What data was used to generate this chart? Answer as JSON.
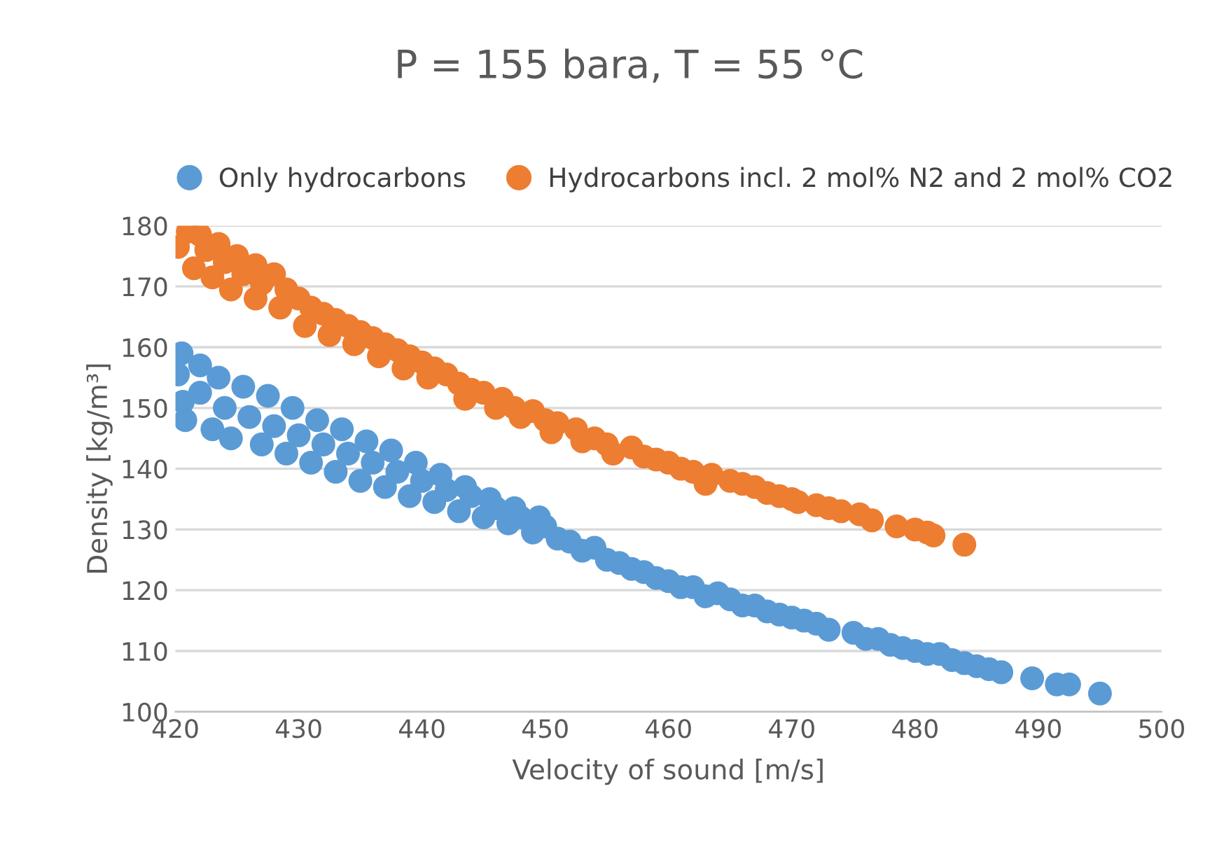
{
  "chart_data": {
    "type": "scatter",
    "title": "P = 155 bara, T = 55 °C",
    "xlabel": "Velocity of sound [m/s]",
    "ylabel": "Density [kg/m³]",
    "xlim": [
      420,
      500
    ],
    "xticks": [
      420,
      430,
      440,
      450,
      460,
      470,
      480,
      490,
      500
    ],
    "ylim": [
      100,
      180
    ],
    "yticks": [
      100,
      110,
      120,
      130,
      140,
      150,
      160,
      170,
      180
    ],
    "grid": "y",
    "legend": "top",
    "marker": "circle",
    "series": [
      {
        "name": "Only hydrocarbons",
        "color": "#5b9bd5",
        "x": [
          420.2,
          420.5,
          420.6,
          420.8,
          422,
          422,
          423,
          423.5,
          424,
          424.5,
          425.5,
          426,
          427,
          427.5,
          428,
          429,
          429.5,
          430,
          431,
          431.5,
          432,
          433,
          433.5,
          434,
          435,
          435.5,
          436,
          437,
          437.5,
          438,
          439,
          439.5,
          440,
          441,
          441.5,
          442,
          443,
          443.5,
          444,
          445,
          445.5,
          446,
          447,
          447.5,
          448,
          449,
          449.5,
          450,
          451,
          452,
          453,
          454,
          455,
          456,
          457,
          458,
          459,
          460,
          461,
          462,
          463,
          464,
          465,
          466,
          467,
          468,
          469,
          470,
          471,
          472,
          473,
          475,
          476,
          477,
          478,
          479,
          480,
          481,
          482,
          483,
          484,
          485,
          486,
          487,
          489.5,
          491.5,
          492.5,
          495
        ],
        "values": [
          155.5,
          159,
          151,
          148,
          157,
          152.5,
          146.5,
          155,
          150,
          145,
          153.5,
          148.5,
          144,
          152,
          147,
          142.5,
          150,
          145.5,
          141,
          148,
          144,
          139.5,
          146.5,
          142.5,
          138,
          144.5,
          141,
          137,
          143,
          139.5,
          135.5,
          141,
          138,
          134.5,
          139,
          136.5,
          133,
          137,
          135.5,
          132,
          135,
          133.5,
          131,
          133.5,
          132,
          129.5,
          132,
          130.5,
          128.5,
          128,
          126.5,
          127,
          125,
          124.5,
          123.5,
          123,
          122,
          121.5,
          120.5,
          120.5,
          119,
          119.5,
          118.5,
          117.5,
          117.5,
          116.5,
          116,
          115.5,
          115,
          114.5,
          113.5,
          113,
          112,
          112,
          111,
          110.5,
          110,
          109.5,
          109.5,
          108.5,
          108,
          107.5,
          107,
          106.5,
          105.5,
          104.5,
          104.5,
          103
        ]
      },
      {
        "name": "Hydrocarbons incl. 2 mol% N2 and 2 mol% CO2",
        "color": "#ed7d31",
        "x": [
          420.2,
          421,
          421.5,
          422,
          422.5,
          423,
          423.5,
          424,
          424.5,
          425,
          425.5,
          426.5,
          426.5,
          427,
          428,
          428.5,
          429,
          430,
          430.5,
          431,
          432,
          432.5,
          433,
          434,
          434.5,
          435,
          436,
          436.5,
          437,
          438,
          438.5,
          439,
          440,
          440.5,
          441,
          442,
          443,
          443.5,
          444,
          445,
          446,
          446.5,
          447.5,
          448,
          449,
          450,
          450.5,
          451,
          452.5,
          453,
          454,
          455,
          455.5,
          457,
          458,
          459,
          460,
          461,
          462,
          463,
          463.5,
          465,
          466,
          467,
          468,
          469,
          470,
          470.5,
          472,
          473,
          474,
          475.5,
          476.5,
          478.5,
          480,
          481,
          481.5,
          484
        ],
        "values": [
          176.5,
          179,
          173,
          178.5,
          176,
          171.5,
          177,
          174,
          169.5,
          175,
          172,
          173.5,
          168,
          170.5,
          172,
          166.5,
          169.5,
          168,
          163.5,
          166.5,
          165.5,
          162,
          164.5,
          163.5,
          160.5,
          162.5,
          161.5,
          158.5,
          160.5,
          159.5,
          156.5,
          158.5,
          157.5,
          155,
          156.5,
          155.5,
          154,
          151.5,
          153,
          152.5,
          150,
          151.5,
          150,
          148.5,
          149.5,
          148,
          146,
          147.5,
          146.5,
          144.5,
          145,
          144,
          142.5,
          143.5,
          142,
          141.5,
          141,
          140,
          139.5,
          137.5,
          139,
          138,
          137.5,
          137,
          136,
          135.5,
          135,
          134.5,
          134,
          133.5,
          133,
          132.5,
          131.5,
          130.5,
          130,
          129.5,
          129,
          127.5
        ]
      }
    ]
  }
}
